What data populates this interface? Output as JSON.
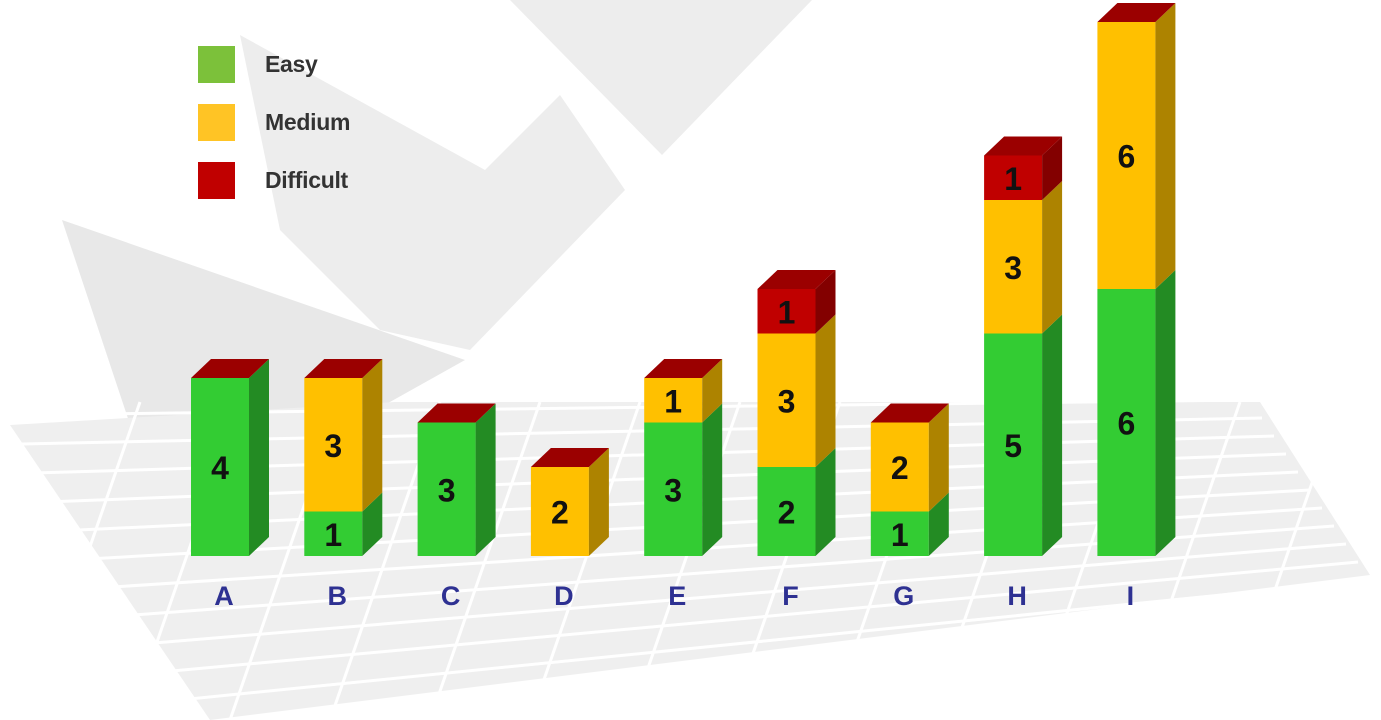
{
  "chart_data": {
    "type": "bar",
    "stacked": true,
    "style": "3d",
    "categories": [
      "A",
      "B",
      "C",
      "D",
      "E",
      "F",
      "G",
      "H",
      "I"
    ],
    "series": [
      {
        "name": "Easy",
        "color": "#33cc33",
        "values": [
          4,
          1,
          3,
          0,
          3,
          2,
          1,
          5,
          6
        ]
      },
      {
        "name": "Medium",
        "color": "#ffc000",
        "values": [
          0,
          3,
          0,
          2,
          1,
          3,
          2,
          3,
          6
        ]
      },
      {
        "name": "Difficult",
        "color": "#c00000",
        "values": [
          0,
          0,
          0,
          0,
          0,
          1,
          0,
          1,
          0
        ]
      }
    ],
    "legend_position": "top-left",
    "colors": {
      "category_label": "#2e3192",
      "grid": "#f2f2f2",
      "background_shape": "#ededed",
      "label_text": "#111111"
    }
  },
  "legend": {
    "items": [
      {
        "label": "Easy",
        "color": "#7cc13a"
      },
      {
        "label": "Medium",
        "color": "#ffc425"
      },
      {
        "label": "Difficult",
        "color": "#c00000"
      }
    ]
  }
}
